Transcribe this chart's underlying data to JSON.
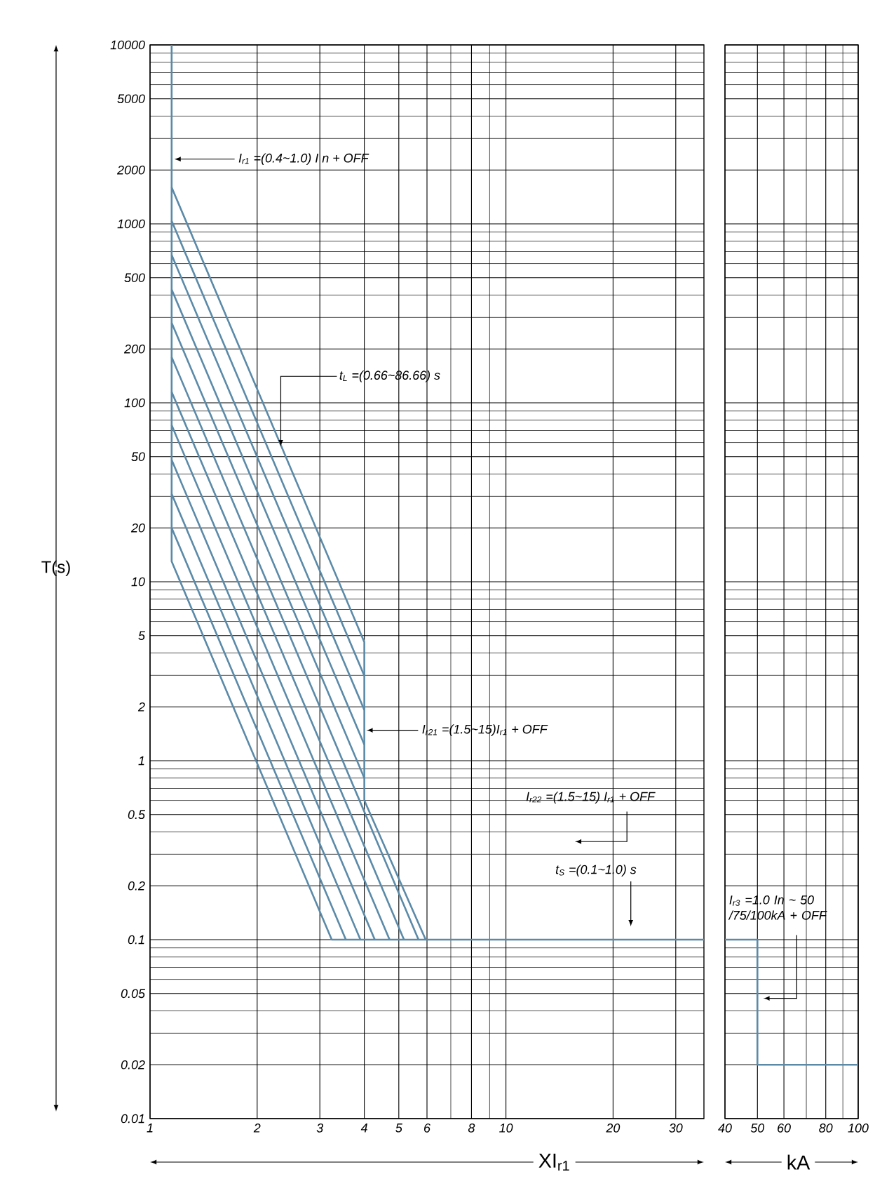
{
  "chart_data": [
    {
      "type": "line",
      "log": "xy",
      "grid": true,
      "marker": "none",
      "line_style": "solid",
      "xlabel": "XI$_{r1}$",
      "ylabel": "T(s)",
      "xlim": [
        1,
        36
      ],
      "ylim": [
        0.01,
        10000
      ],
      "xticks": [
        1,
        2,
        3,
        4,
        5,
        6,
        8,
        10,
        20,
        30
      ],
      "yticks": [
        0.01,
        0.02,
        0.05,
        0.1,
        0.2,
        0.5,
        1,
        2,
        5,
        10,
        20,
        50,
        100,
        200,
        500,
        1000,
        2000,
        5000,
        10000
      ],
      "series": [
        {
          "color": "#5b8aa8",
          "x": [
            1.15,
            1.15,
            3.24,
            36
          ],
          "values": [
            10000,
            13,
            0.1,
            0.1
          ]
        },
        {
          "color": "#5b8aa8",
          "x": [
            1.15,
            3.55
          ],
          "values": [
            20,
            0.1
          ]
        },
        {
          "color": "#5b8aa8",
          "x": [
            1.15,
            3.9
          ],
          "values": [
            31,
            0.1
          ]
        },
        {
          "color": "#5b8aa8",
          "x": [
            1.15,
            4.28
          ],
          "values": [
            48,
            0.1
          ]
        },
        {
          "color": "#5b8aa8",
          "x": [
            1.15,
            4.71
          ],
          "values": [
            75,
            0.1
          ]
        },
        {
          "color": "#5b8aa8",
          "x": [
            1.15,
            5.17
          ],
          "values": [
            115,
            0.1
          ]
        },
        {
          "color": "#5b8aa8",
          "x": [
            1.15,
            5.68
          ],
          "values": [
            180,
            0.1
          ]
        },
        {
          "color": "#5b8aa8",
          "x": [
            1.15,
            4
          ],
          "values": [
            280,
            0.8
          ]
        },
        {
          "color": "#5b8aa8",
          "x": [
            1.15,
            4
          ],
          "values": [
            430,
            1.23
          ]
        },
        {
          "color": "#5b8aa8",
          "x": [
            1.15,
            4
          ],
          "values": [
            670,
            1.92
          ]
        },
        {
          "color": "#5b8aa8",
          "x": [
            1.15,
            4
          ],
          "values": [
            1040,
            2.98
          ]
        },
        {
          "color": "#5b8aa8",
          "x": [
            1.15,
            4,
            4,
            5.95
          ],
          "values": [
            1600,
            4.6,
            0.6,
            0.1
          ]
        }
      ],
      "annotations": [
        {
          "text": "I$_{r1}$ =(0.4~1.0) I n + OFF",
          "x": 1.17,
          "y": 2300
        },
        {
          "text": "t$_{L}$ =(0.66~86.66) s",
          "x": 2.33,
          "y": 57
        },
        {
          "text": "I$_{r21}$ =(1.5~15)I$_{r1}$ + OFF",
          "x": 4.05,
          "y": 1.48
        },
        "I$_{r22}$ =(1.5~15) I$_{r1}$ + OFF",
        "t$_{S}$ =(0.1~1.0) s"
      ]
    },
    {
      "type": "line",
      "log": "xy",
      "grid": true,
      "marker": "none",
      "line_style": "solid",
      "tick_labels": "x",
      "xlabel": "kA",
      "xlim": [
        40,
        100
      ],
      "ylim": [
        0.01,
        10000
      ],
      "xticks": [
        40,
        50,
        60,
        80,
        100
      ],
      "yticks": [
        0.01,
        0.02,
        0.05,
        0.1,
        0.2,
        0.5,
        1,
        2,
        5,
        10,
        20,
        50,
        100,
        200,
        500,
        1000,
        2000,
        5000,
        10000
      ],
      "series": [
        {
          "color": "#5b8aa8",
          "x": [
            40,
            50,
            50,
            100
          ],
          "values": [
            0.1,
            0.1,
            0.02,
            0.02
          ]
        }
      ],
      "annotations": [
        {
          "text": "I$_{r3}$ =1.0 In ~ 50 /75/100kA + OFF",
          "x": 52,
          "y": 0.047
        }
      ]
    }
  ]
}
